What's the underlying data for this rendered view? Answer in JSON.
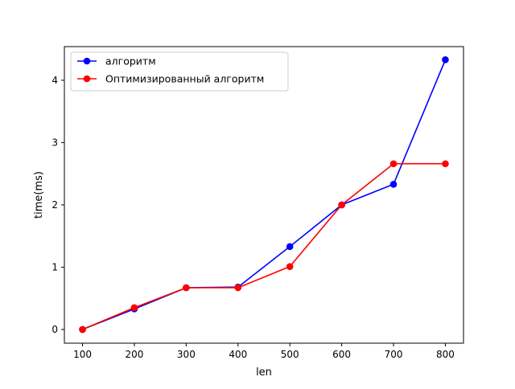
{
  "chart_data": {
    "type": "line",
    "title": "",
    "xlabel": "len",
    "ylabel": "time(ms)",
    "x": [
      100,
      200,
      300,
      400,
      500,
      600,
      700,
      800
    ],
    "xticks": [
      "100",
      "200",
      "300",
      "400",
      "500",
      "600",
      "700",
      "800"
    ],
    "yticks": [
      "0",
      "1",
      "2",
      "3",
      "4"
    ],
    "xlim": [
      65,
      835
    ],
    "ylim": [
      -0.22,
      4.54
    ],
    "grid": false,
    "legend": "top-left",
    "series": [
      {
        "name": "алгоритм",
        "color": "#0000ff",
        "marker": "circle",
        "values": [
          0.0,
          0.33,
          0.67,
          0.68,
          1.33,
          2.0,
          2.33,
          4.33
        ]
      },
      {
        "name": "Оптимизированный алгоритм",
        "color": "#ff0000",
        "marker": "circle",
        "values": [
          0.0,
          0.35,
          0.67,
          0.67,
          1.01,
          2.0,
          2.66,
          2.66
        ]
      }
    ]
  }
}
